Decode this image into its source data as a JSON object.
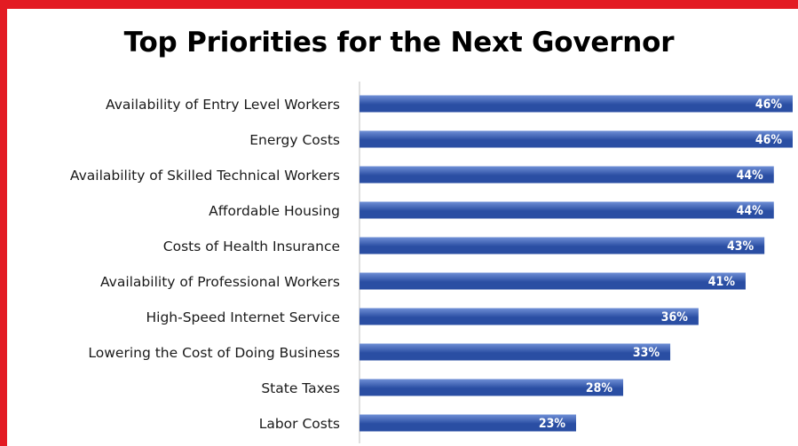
{
  "title": "Top Priorities for the Next Governor",
  "colors": {
    "frame": "#e31b23",
    "bar_light": "#6f8fd6",
    "bar_dark": "#2a4ea3",
    "axis": "#bfbfbf"
  },
  "chart_data": {
    "type": "bar",
    "orientation": "horizontal",
    "title": "Top Priorities for the Next Governor",
    "categories": [
      "Availability of Entry Level Workers",
      "Energy Costs",
      "Availability of Skilled Technical Workers",
      "Affordable Housing",
      "Costs of Health Insurance",
      "Availability of Professional Workers",
      "High-Speed Internet Service",
      "Lowering the Cost of Doing Business",
      "State Taxes",
      "Labor Costs"
    ],
    "values": [
      46,
      46,
      44,
      44,
      43,
      41,
      36,
      33,
      28,
      23
    ],
    "value_labels": [
      "46%",
      "46%",
      "44%",
      "44%",
      "43%",
      "41%",
      "36%",
      "33%",
      "28%",
      "23%"
    ],
    "xlim": [
      0,
      46
    ],
    "grid": false,
    "legend": "none"
  }
}
